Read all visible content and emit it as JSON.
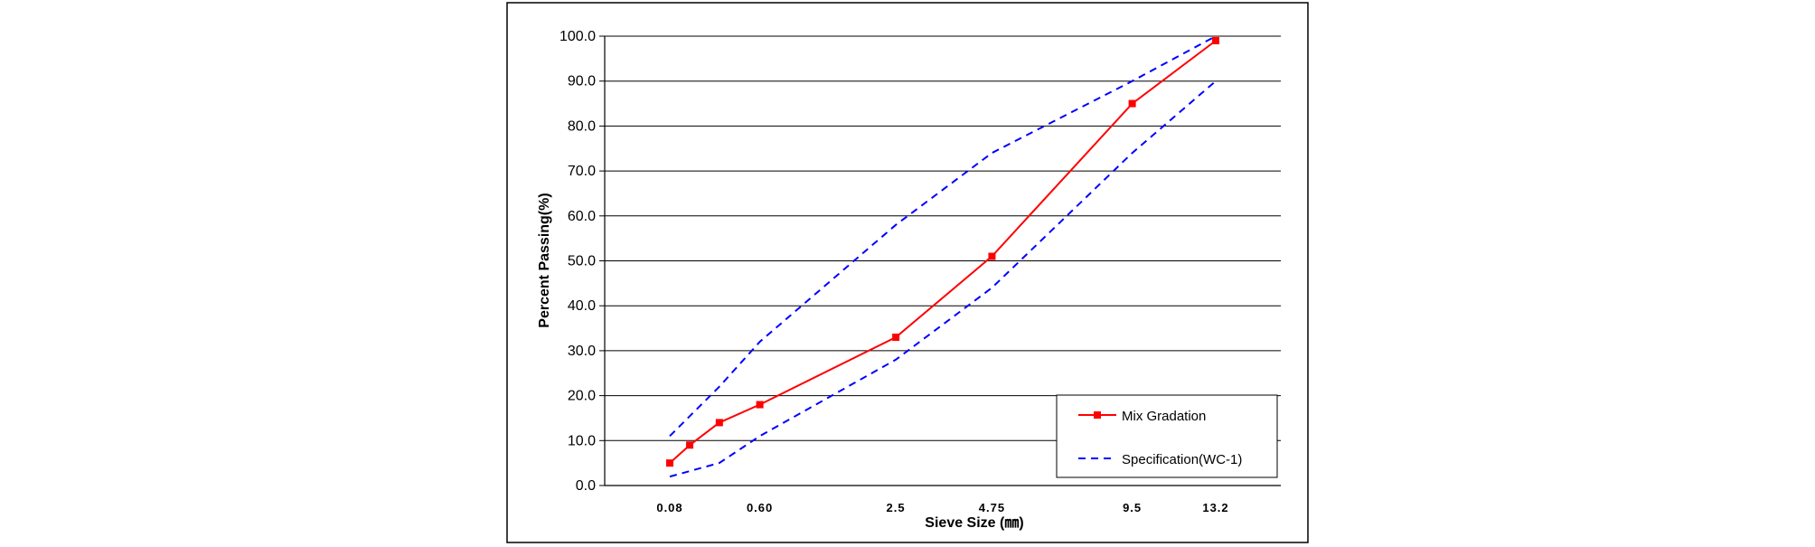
{
  "chart_data": {
    "type": "line",
    "title": "",
    "xlabel": "Sieve Size (㎜)",
    "ylabel": "Percent Passing(%)",
    "ylim": [
      0,
      100
    ],
    "y_ticks": [
      "0.0",
      "10.0",
      "20.0",
      "30.0",
      "40.0",
      "50.0",
      "60.0",
      "70.0",
      "80.0",
      "90.0",
      "100.0"
    ],
    "x_tick_labels": [
      "0.08",
      "0.60",
      "2.5",
      "4.75",
      "9.5",
      "13.2"
    ],
    "x_scale": "sieve-power-0.45",
    "grid": true,
    "legend_position": "bottom-right",
    "series": [
      {
        "name": "Mix Gradation",
        "color": "#ff0000",
        "style": "solid",
        "marker": "square",
        "x": [
          0.08,
          0.15,
          0.3,
          0.6,
          2.5,
          4.75,
          9.5,
          13.2
        ],
        "y": [
          5.0,
          9.0,
          14.0,
          18.0,
          33.0,
          51.0,
          85.0,
          99.0
        ]
      },
      {
        "name": "Specification(WC-1)",
        "color": "#0000ff",
        "style": "dashed",
        "marker": "none",
        "x": [
          0.08,
          0.3,
          0.6,
          2.5,
          4.75,
          9.5,
          13.2
        ],
        "y": [
          11.0,
          22.0,
          32.0,
          58.0,
          74.0,
          90.0,
          100.0
        ]
      },
      {
        "name": "Specification(WC-1) lower limit",
        "color": "#0000ff",
        "style": "dashed",
        "marker": "none",
        "in_legend": false,
        "x": [
          0.08,
          0.3,
          0.6,
          2.5,
          4.75,
          9.5,
          13.2
        ],
        "y": [
          2.0,
          5.0,
          11.0,
          28.0,
          44.0,
          74.0,
          90.0
        ]
      }
    ]
  }
}
